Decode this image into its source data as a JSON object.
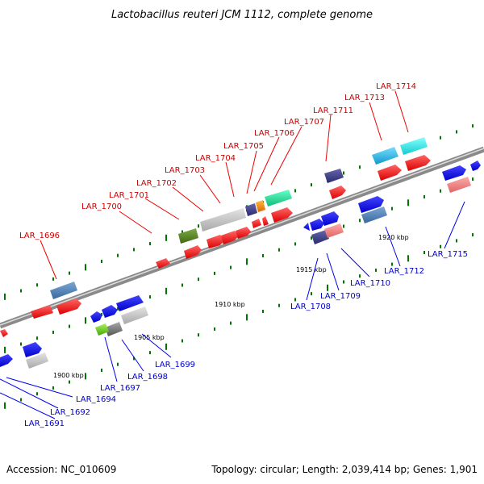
{
  "title": "Lactobacillus reuteri JCM 1112, complete genome",
  "footer": {
    "accession": "Accession: NC_010609",
    "topology": "Topology: circular; Length: 2,039,414 bp; Genes: 1,901"
  },
  "scale_labels": [
    "1900 kbp",
    "1905 kbp",
    "1910 kbp",
    "1915 kbp",
    "1920 kbp"
  ],
  "colors": {
    "red": "#ee1111",
    "blue": "#0000ee",
    "navy": "#3a3a8a",
    "steel": "#4f7fb0",
    "silver": "#c0c0c0",
    "olive": "#5a8a22",
    "green": "#55cc33",
    "teal": "#22dd99",
    "cyan": "#33ccee",
    "aqua": "#22eeee",
    "pink": "#ee8888",
    "orange": "#ff8800",
    "grey": "#888888",
    "backbone": "#999999",
    "tick": "#007700"
  },
  "upper_labels": [
    "LAR_1696",
    "LAR_1700",
    "LAR_1701",
    "LAR_1702",
    "LAR_1703",
    "LAR_1704",
    "LAR_1705",
    "LAR_1706",
    "LAR_1707",
    "LAR_1711",
    "LAR_1713",
    "LAR_1714"
  ],
  "lower_labels": [
    "LAR_1691",
    "LAR_1692",
    "LAR_1694",
    "LAR_1697",
    "LAR_1698",
    "LAR_1699",
    "LAR_1708",
    "LAR_1709",
    "LAR_1710",
    "LAR_1712",
    "LAR_1715"
  ]
}
